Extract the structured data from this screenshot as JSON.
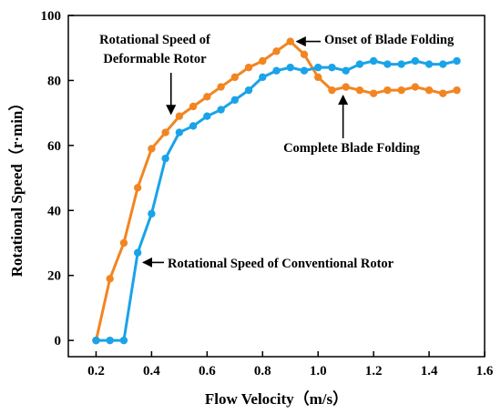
{
  "chart_data": {
    "type": "line",
    "xlabel": "Flow Velocity（m/s）",
    "ylabel": "Rotational Speed（r·min）",
    "xlim": [
      0.1,
      1.6
    ],
    "ylim": [
      -5,
      100
    ],
    "xticks": [
      "0.2",
      "0.4",
      "0.6",
      "0.8",
      "1.0",
      "1.2",
      "1.4",
      "1.6"
    ],
    "yticks": [
      "0",
      "20",
      "40",
      "60",
      "80",
      "100"
    ],
    "grid": false,
    "series": [
      {
        "name": "Rotational Speed of Deformable Rotor",
        "color": "#F28522",
        "x": [
          0.2,
          0.25,
          0.3,
          0.35,
          0.4,
          0.45,
          0.5,
          0.55,
          0.6,
          0.65,
          0.7,
          0.75,
          0.8,
          0.85,
          0.9,
          0.95,
          1.0,
          1.05,
          1.1,
          1.15,
          1.2,
          1.25,
          1.3,
          1.35,
          1.4,
          1.45,
          1.5
        ],
        "y": [
          0,
          19,
          30,
          47,
          59,
          64,
          69,
          72,
          75,
          78,
          81,
          84,
          86,
          89,
          92,
          88,
          81,
          77,
          78,
          77,
          76,
          77,
          77,
          78,
          77,
          76,
          77
        ]
      },
      {
        "name": "Rotational Speed of Conventional Rotor",
        "color": "#1AA3E8",
        "x": [
          0.2,
          0.25,
          0.3,
          0.35,
          0.4,
          0.45,
          0.5,
          0.55,
          0.6,
          0.65,
          0.7,
          0.75,
          0.8,
          0.85,
          0.9,
          0.95,
          1.0,
          1.05,
          1.1,
          1.15,
          1.2,
          1.25,
          1.3,
          1.35,
          1.4,
          1.45,
          1.5
        ],
        "y": [
          0,
          0,
          0,
          27,
          39,
          56,
          64,
          66,
          69,
          71,
          74,
          77,
          81,
          83,
          84,
          83,
          84,
          84,
          83,
          85,
          86,
          85,
          85,
          86,
          85,
          85,
          86
        ]
      }
    ],
    "annotations": [
      {
        "lines": [
          "Rotational Speed of",
          "Deformable Rotor"
        ],
        "x": 0.47,
        "y": 68
      },
      {
        "lines": [
          "Onset of Blade Folding"
        ],
        "x": 0.9,
        "y": 92
      },
      {
        "lines": [
          "Complete Blade Folding"
        ],
        "x": 1.09,
        "y": 77
      },
      {
        "lines": [
          "Rotational Speed of Conventional Rotor"
        ],
        "x": 0.35,
        "y": 24
      }
    ]
  }
}
